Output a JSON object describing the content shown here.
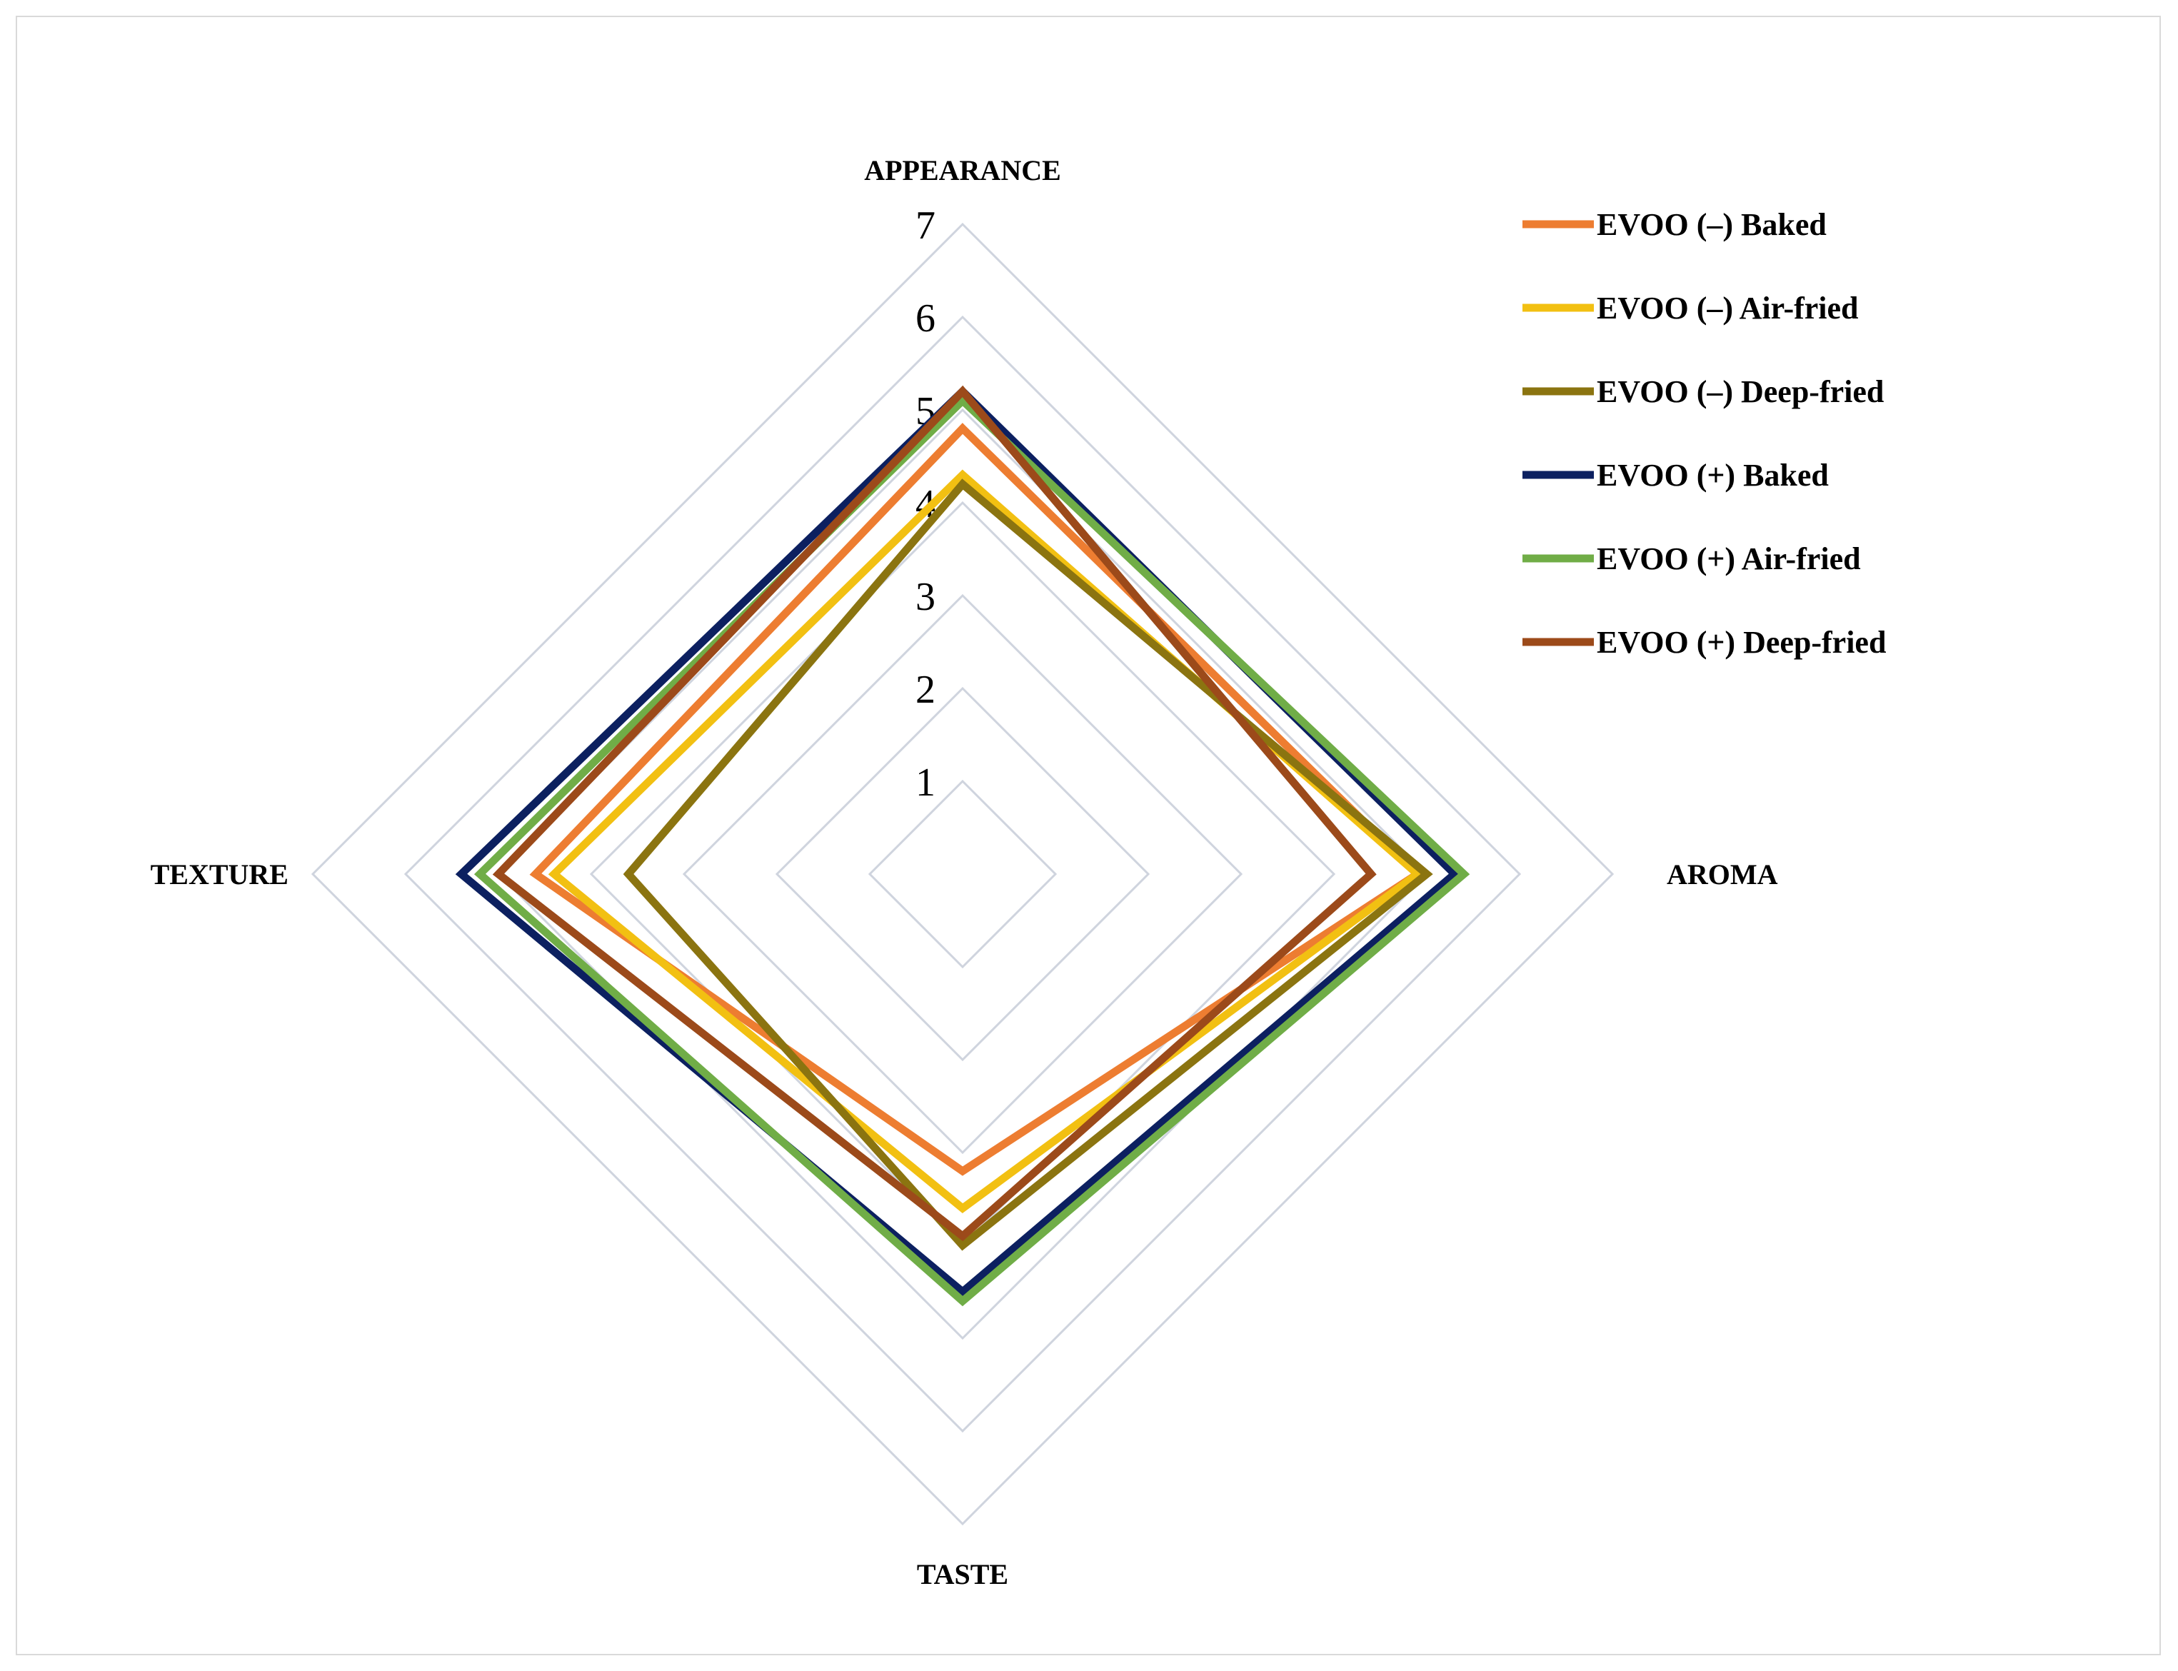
{
  "chart_data": {
    "type": "radar",
    "axes": [
      "APPEARANCE",
      "AROMA",
      "TASTE",
      "TEXTURE"
    ],
    "rlim": [
      0,
      7
    ],
    "ticks": [
      "1",
      "2",
      "3",
      "4",
      "5",
      "6",
      "7"
    ],
    "grid": true,
    "legend_position": "top-right",
    "series": [
      {
        "name": "EVOO (–) Baked",
        "color": "#ed7d31",
        "values": [
          4.8,
          4.9,
          3.2,
          4.6
        ]
      },
      {
        "name": "EVOO (–) Air-fried",
        "color": "#f2c012",
        "values": [
          4.3,
          4.9,
          3.6,
          4.4
        ]
      },
      {
        "name": "EVOO (–) Deep-fried",
        "color": "#8b7410",
        "values": [
          4.2,
          5.0,
          4.0,
          3.6
        ]
      },
      {
        "name": "EVOO (+) Baked",
        "color": "#0c2060",
        "values": [
          5.2,
          5.3,
          4.5,
          5.4
        ]
      },
      {
        "name": "EVOO (+) Air-fried",
        "color": "#70ad47",
        "values": [
          5.1,
          5.4,
          4.6,
          5.2
        ]
      },
      {
        "name": "EVOO (+) Deep-fried",
        "color": "#9c4a1a",
        "values": [
          5.2,
          4.4,
          3.9,
          5.0
        ]
      }
    ]
  }
}
